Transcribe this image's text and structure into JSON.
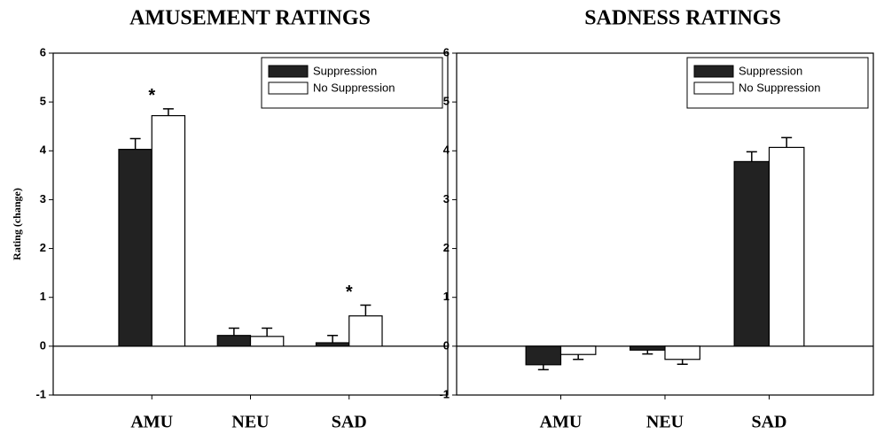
{
  "chart_data": [
    {
      "type": "bar",
      "title": "AMUSEMENT RATINGS",
      "y_label": "Rating (change)",
      "categories": [
        "AMU",
        "NEU",
        "SAD"
      ],
      "series": [
        {
          "name": "Suppression",
          "color": "#222222",
          "values": [
            4.03,
            0.22,
            0.07
          ],
          "errors": [
            0.22,
            0.15,
            0.15
          ]
        },
        {
          "name": "No Suppression",
          "color": "#ffffff",
          "values": [
            4.72,
            0.2,
            0.62
          ],
          "errors": [
            0.14,
            0.17,
            0.22
          ]
        }
      ],
      "annotations": [
        {
          "text": "*",
          "category": "AMU"
        },
        {
          "text": "*",
          "category": "SAD"
        }
      ],
      "ylim": [
        -1,
        6
      ],
      "yticks": [
        -1,
        0,
        1,
        2,
        3,
        4,
        5,
        6
      ],
      "legend": "upper right"
    },
    {
      "type": "bar",
      "title": "SADNESS RATINGS",
      "categories": [
        "AMU",
        "NEU",
        "SAD"
      ],
      "series": [
        {
          "name": "Suppression",
          "color": "#222222",
          "values": [
            -0.38,
            -0.08,
            3.78
          ],
          "errors": [
            0.1,
            0.08,
            0.2
          ]
        },
        {
          "name": "No Suppression",
          "color": "#ffffff",
          "values": [
            -0.17,
            -0.27,
            4.07
          ],
          "errors": [
            0.1,
            0.1,
            0.2
          ]
        }
      ],
      "ylim": [
        -1,
        6
      ],
      "yticks": [
        -1,
        0,
        1,
        2,
        3,
        4,
        5,
        6
      ],
      "legend": "upper right"
    }
  ]
}
